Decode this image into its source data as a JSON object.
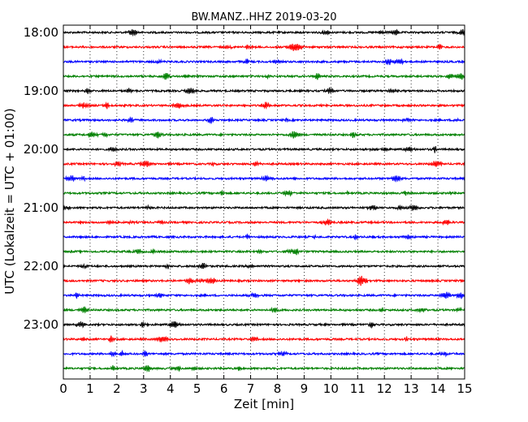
{
  "chart_data": {
    "type": "line",
    "title": "BW.MANZ..HHZ 2019-03-20",
    "xlabel": "Zeit  [min]",
    "ylabel": "UTC (Lokalzeit = UTC + 01:00)",
    "xlim": [
      0,
      15
    ],
    "x_ticks": [
      "0",
      "1",
      "2",
      "3",
      "4",
      "5",
      "6",
      "7",
      "8",
      "9",
      "10",
      "11",
      "12",
      "13",
      "14",
      "15"
    ],
    "y_tick_labels": [
      {
        "label": "18:00",
        "row": 0
      },
      {
        "label": "19:00",
        "row": 4
      },
      {
        "label": "20:00",
        "row": 8
      },
      {
        "label": "21:00",
        "row": 12
      },
      {
        "label": "22:00",
        "row": 16
      },
      {
        "label": "23:00",
        "row": 20
      }
    ],
    "row_interval_minutes": 15,
    "rows": [
      {
        "start": "18:00",
        "color": "#000000"
      },
      {
        "start": "18:15",
        "color": "#ff0000"
      },
      {
        "start": "18:30",
        "color": "#0000ff"
      },
      {
        "start": "18:45",
        "color": "#008000"
      },
      {
        "start": "19:00",
        "color": "#000000"
      },
      {
        "start": "19:15",
        "color": "#ff0000"
      },
      {
        "start": "19:30",
        "color": "#0000ff"
      },
      {
        "start": "19:45",
        "color": "#008000"
      },
      {
        "start": "20:00",
        "color": "#000000"
      },
      {
        "start": "20:15",
        "color": "#ff0000"
      },
      {
        "start": "20:30",
        "color": "#0000ff"
      },
      {
        "start": "20:45",
        "color": "#008000"
      },
      {
        "start": "21:00",
        "color": "#000000"
      },
      {
        "start": "21:15",
        "color": "#ff0000"
      },
      {
        "start": "21:30",
        "color": "#0000ff"
      },
      {
        "start": "21:45",
        "color": "#008000"
      },
      {
        "start": "22:00",
        "color": "#000000"
      },
      {
        "start": "22:15",
        "color": "#ff0000"
      },
      {
        "start": "22:30",
        "color": "#0000ff"
      },
      {
        "start": "22:45",
        "color": "#008000"
      },
      {
        "start": "23:00",
        "color": "#000000"
      },
      {
        "start": "23:15",
        "color": "#ff0000"
      },
      {
        "start": "23:30",
        "color": "#0000ff"
      },
      {
        "start": "23:45",
        "color": "#008000"
      }
    ],
    "grid": {
      "vertical": true,
      "style": "dotted"
    },
    "legend": "none"
  }
}
